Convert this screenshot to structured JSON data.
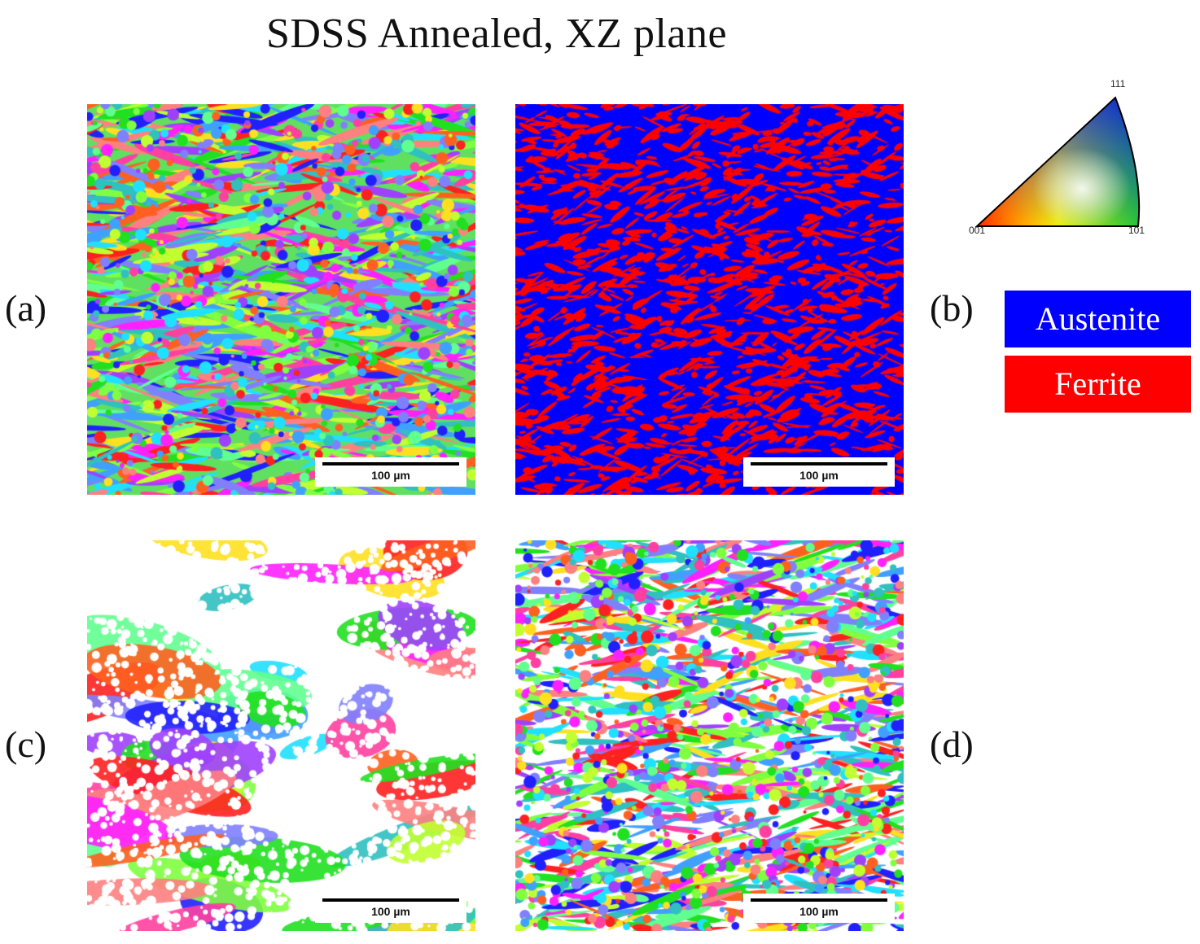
{
  "title": "SDSS Annealed, XZ plane",
  "panels": {
    "a": {
      "letter": "(a)",
      "scale_label": "100 µm",
      "kind": "ipf-all-phases"
    },
    "b": {
      "letter": "(b)",
      "scale_label": "100 µm",
      "kind": "phase-map"
    },
    "c": {
      "letter": "(c)",
      "scale_label": "100 µm",
      "kind": "ipf-ferrite"
    },
    "d": {
      "letter": "(d)",
      "scale_label": "100 µm",
      "kind": "ipf-austenite"
    }
  },
  "phase_legend": [
    {
      "label": "Austenite",
      "color": "#0000ff"
    },
    {
      "label": "Ferrite",
      "color": "#ff0000"
    }
  ],
  "ipf_key": {
    "top": "111",
    "left": "001",
    "right": "101"
  },
  "colors": {
    "austenite": "#0000ff",
    "ferrite": "#ff0000",
    "background": "#ffffff"
  }
}
